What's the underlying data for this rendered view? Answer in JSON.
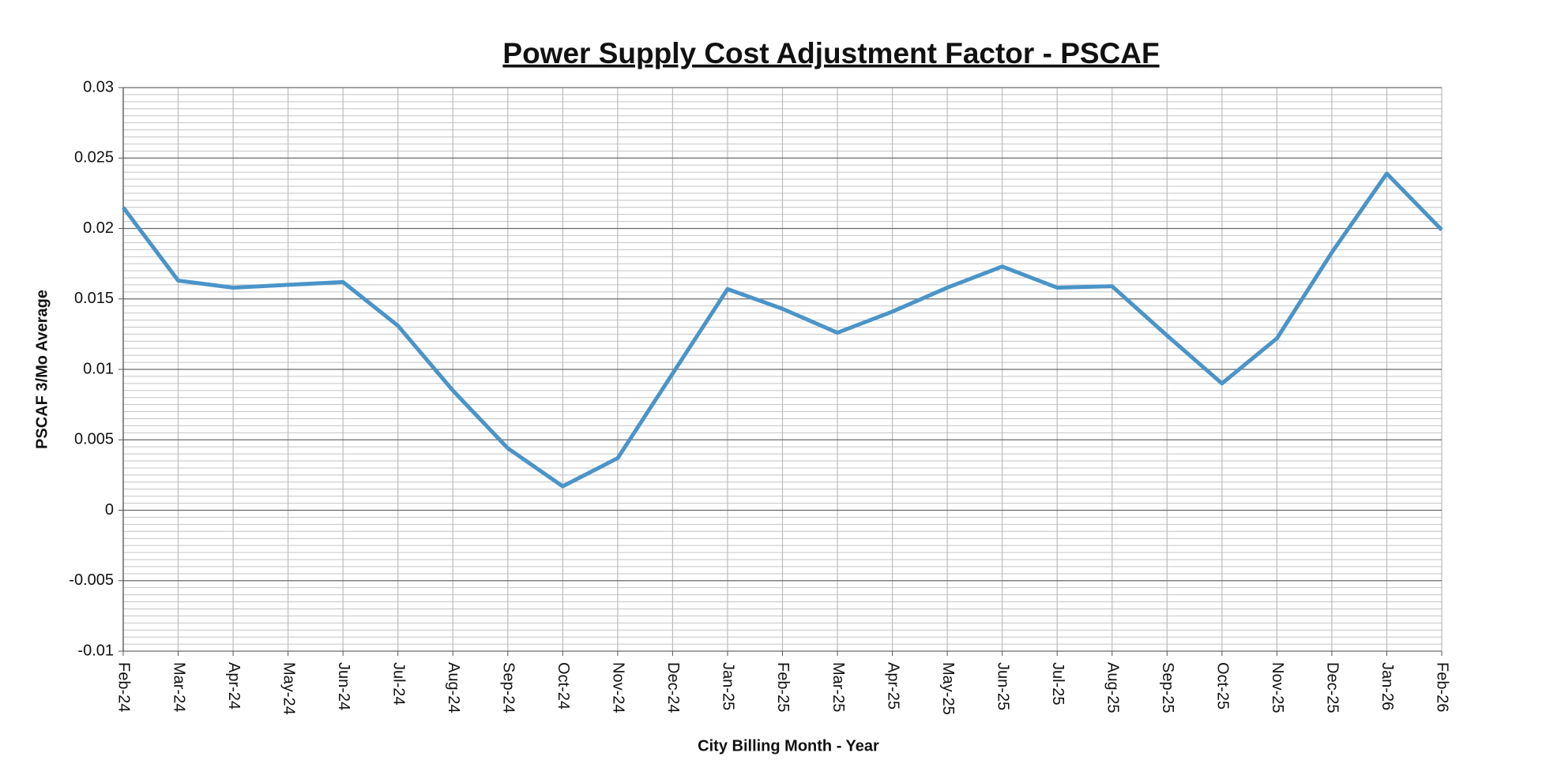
{
  "chart_data": {
    "type": "line",
    "title": "Power Supply Cost Adjustment Factor - PSCAF",
    "x_label": "City Billing Month - Year",
    "y_label": "PSCAF 3/Mo Average",
    "categories": [
      "Feb-24",
      "Mar-24",
      "Apr-24",
      "May-24",
      "Jun-24",
      "Jul-24",
      "Aug-24",
      "Sep-24",
      "Oct-24",
      "Nov-24",
      "Dec-24",
      "Jan-25",
      "Feb-25",
      "Mar-25",
      "Apr-25",
      "May-25",
      "Jun-25",
      "Jul-25",
      "Aug-25",
      "Sep-25",
      "Oct-25",
      "Nov-25",
      "Dec-25",
      "Jan-26",
      "Feb-26"
    ],
    "values": [
      0.0215,
      0.0163,
      0.0158,
      0.016,
      0.0162,
      0.0131,
      0.0085,
      0.0044,
      0.0017,
      0.0037,
      0.0097,
      0.0157,
      0.0143,
      0.0126,
      0.0141,
      0.0158,
      0.0173,
      0.0158,
      0.0159,
      0.0124,
      0.009,
      0.0122,
      0.0183,
      0.0239,
      0.0199
    ],
    "color": "#4a94c8",
    "ylim": [
      -0.01,
      0.03
    ],
    "yticks": [
      -0.01,
      -0.005,
      0,
      0.005,
      0.01,
      0.015,
      0.02,
      0.025,
      0.03
    ],
    "minor_grid_divisions": 10,
    "grid": true
  }
}
